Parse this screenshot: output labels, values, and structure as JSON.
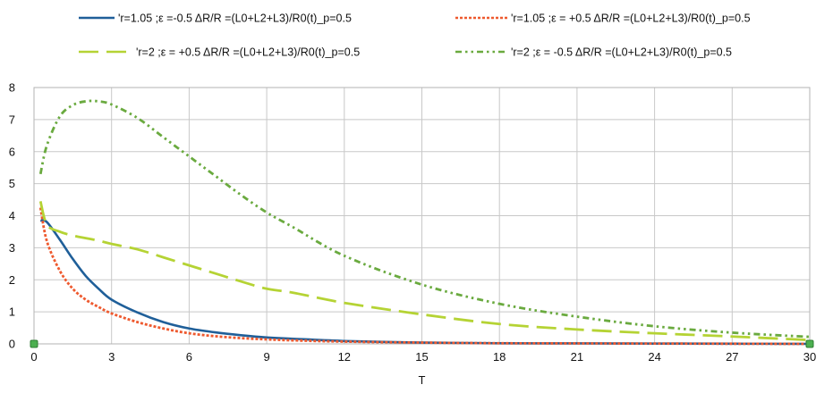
{
  "chart_data": {
    "type": "line",
    "xlabel": "T",
    "ylabel": "",
    "xlim": [
      0,
      30
    ],
    "ylim": [
      0,
      8
    ],
    "xticks": [
      0,
      3,
      6,
      9,
      12,
      15,
      18,
      21,
      24,
      27,
      30
    ],
    "yticks": [
      0,
      1,
      2,
      3,
      4,
      5,
      6,
      7,
      8
    ],
    "grid": true,
    "legend_position": "top",
    "x": [
      0.25,
      0.5,
      1,
      1.5,
      2,
      2.5,
      3,
      4,
      5,
      6,
      7,
      8,
      9,
      10,
      12,
      15,
      18,
      21,
      24,
      27,
      30
    ],
    "series": [
      {
        "name": "'r=1.05 ;ε =-0.5  ΔR/R =(L0+L2+L3)/R0(t)_p=0.5",
        "color": "#1f5f99",
        "dash": "solid",
        "values": [
          3.85,
          3.8,
          3.25,
          2.65,
          2.12,
          1.72,
          1.38,
          0.98,
          0.68,
          0.48,
          0.36,
          0.27,
          0.2,
          0.16,
          0.09,
          0.04,
          0.02,
          0.015,
          0.01,
          0.005,
          0.0
        ]
      },
      {
        "name": "'r=1.05 ;ε = +0.5  ΔR/R =(L0+L2+L3)/R0(t)_p=0.5",
        "color": "#ee5a2f",
        "dash": "dotted",
        "values": [
          4.25,
          3.2,
          2.28,
          1.72,
          1.38,
          1.15,
          0.95,
          0.68,
          0.48,
          0.33,
          0.24,
          0.18,
          0.14,
          0.11,
          0.07,
          0.04,
          0.02,
          0.015,
          0.01,
          0.005,
          0.0
        ]
      },
      {
        "name": "'r=2 ;ε = +0.5  ΔR/R =(L0+L2+L3)/R0(t)_p=0.5",
        "color": "#b5d334",
        "dash": "long-dash",
        "values": [
          4.45,
          3.72,
          3.5,
          3.38,
          3.3,
          3.22,
          3.12,
          2.95,
          2.7,
          2.45,
          2.2,
          1.95,
          1.72,
          1.6,
          1.28,
          0.92,
          0.62,
          0.45,
          0.33,
          0.23,
          0.12
        ]
      },
      {
        "name": "'r=2 ;ε = -0.5  ΔR/R =(L0+L2+L3)/R0(t)_p=0.5",
        "color": "#6aaa3f",
        "dash": "dash-dot-dot",
        "values": [
          5.3,
          6.2,
          7.1,
          7.45,
          7.57,
          7.57,
          7.47,
          7.05,
          6.45,
          5.85,
          5.25,
          4.65,
          4.1,
          3.65,
          2.75,
          1.85,
          1.25,
          0.85,
          0.55,
          0.35,
          0.22
        ]
      }
    ],
    "endpoint_markers": [
      {
        "x": 0,
        "y": 0,
        "color": "#4caf50"
      },
      {
        "x": 30,
        "y": 0,
        "color": "#4caf50"
      }
    ]
  }
}
